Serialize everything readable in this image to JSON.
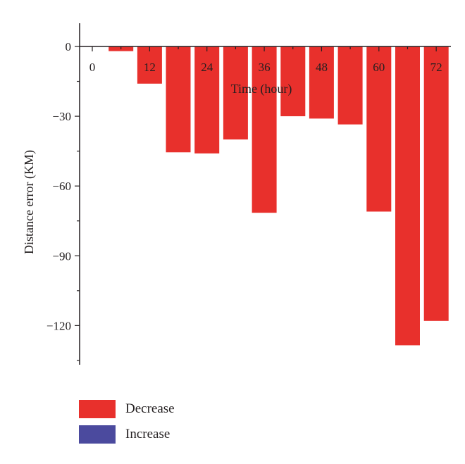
{
  "chart_data": {
    "type": "bar",
    "xlabel": "Time (hour)",
    "ylabel": "Distance error (KM)",
    "x_ticks": [
      "0",
      "12",
      "24",
      "36",
      "48",
      "60",
      "72"
    ],
    "y_ticks": [
      "0",
      "−30",
      "−60",
      "−90",
      "−120"
    ],
    "ylim": [
      -137,
      10
    ],
    "xlim": [
      -3,
      75
    ],
    "grid": false,
    "legend_position": "bottom-left",
    "series": [
      {
        "name": "Decrease",
        "color": "#e8302c",
        "x": [
          6,
          12,
          18,
          24,
          30,
          36,
          42,
          48,
          54,
          60,
          66,
          72
        ],
        "values": [
          -2,
          -16,
          -45.5,
          -46,
          -40,
          -71.5,
          -30,
          -31,
          -33.5,
          -71,
          -128.5,
          -118
        ]
      },
      {
        "name": "Increase",
        "color": "#4b4a9e",
        "x": [],
        "values": []
      }
    ]
  }
}
